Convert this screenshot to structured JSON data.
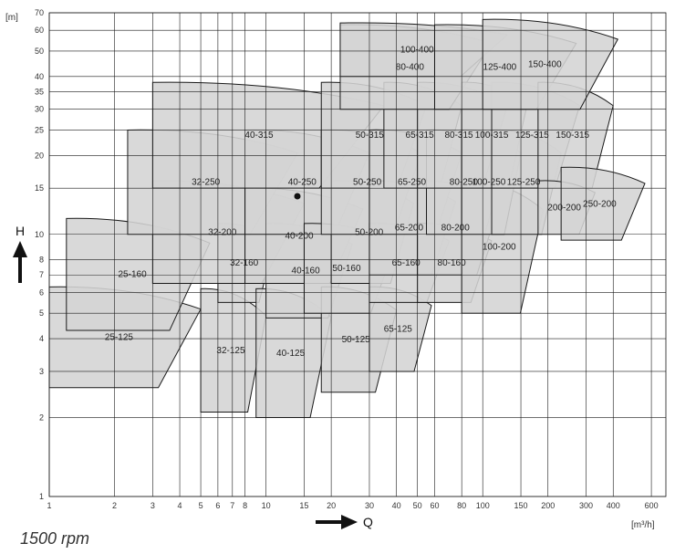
{
  "chart_data": {
    "type": "area",
    "subtitle_rpm": "1500 rpm",
    "x_axis": {
      "name": "Q",
      "unit": "[m³/h]",
      "scale": "log",
      "range": [
        1,
        700
      ],
      "ticks": [
        1,
        2,
        3,
        4,
        5,
        6,
        7,
        8,
        10,
        15,
        20,
        30,
        40,
        50,
        60,
        80,
        100,
        150,
        200,
        300,
        400,
        600
      ]
    },
    "y_axis": {
      "name": "H",
      "unit": "[m]",
      "scale": "log",
      "range": [
        1,
        70
      ],
      "ticks": [
        1,
        2,
        3,
        4,
        5,
        6,
        7,
        8,
        10,
        15,
        20,
        25,
        30,
        35,
        40,
        50,
        60,
        70
      ]
    },
    "grid": true,
    "zones": [
      {
        "label": "25-125",
        "q_range": [
          1,
          5
        ],
        "h_range": [
          2.6,
          6.3
        ]
      },
      {
        "label": "25-160",
        "q_range": [
          1.2,
          5.5
        ],
        "h_range": [
          4.3,
          11.5
        ]
      },
      {
        "label": "32-125",
        "q_range": [
          5,
          10
        ],
        "h_range": [
          2.1,
          6.2
        ]
      },
      {
        "label": "32-160",
        "q_range": [
          6,
          11
        ],
        "h_range": [
          5.5,
          11
        ]
      },
      {
        "label": "32-200",
        "q_range": [
          3,
          15
        ],
        "h_range": [
          6.5,
          16
        ]
      },
      {
        "label": "32-250",
        "q_range": [
          2.3,
          14
        ],
        "h_range": [
          10,
          25
        ]
      },
      {
        "label": "40-125",
        "q_range": [
          9,
          20
        ],
        "h_range": [
          2,
          6.2
        ]
      },
      {
        "label": "40-160",
        "q_range": [
          10,
          25
        ],
        "h_range": [
          4.8,
          11
        ]
      },
      {
        "label": "40-200",
        "q_range": [
          8,
          28
        ],
        "h_range": [
          6.5,
          15
        ]
      },
      {
        "label": "40-250",
        "q_range": [
          8,
          30
        ],
        "h_range": [
          10,
          25
        ]
      },
      {
        "label": "40-315",
        "q_range": [
          3,
          35
        ],
        "h_range": [
          15,
          38
        ]
      },
      {
        "label": "50-125",
        "q_range": [
          18,
          40
        ],
        "h_range": [
          2.5,
          6.3
        ]
      },
      {
        "label": "50-160",
        "q_range": [
          15,
          40
        ],
        "h_range": [
          5,
          11
        ]
      },
      {
        "label": "50-200",
        "q_range": [
          20,
          48
        ],
        "h_range": [
          6.5,
          16
        ]
      },
      {
        "label": "50-250",
        "q_range": [
          18,
          52
        ],
        "h_range": [
          10,
          25
        ]
      },
      {
        "label": "50-315",
        "q_range": [
          18,
          55
        ],
        "h_range": [
          15,
          38
        ]
      },
      {
        "label": "65-125",
        "q_range": [
          30,
          58
        ],
        "h_range": [
          3,
          6.3
        ]
      },
      {
        "label": "65-160",
        "q_range": [
          30,
          70
        ],
        "h_range": [
          5.5,
          11
        ]
      },
      {
        "label": "65-200",
        "q_range": [
          30,
          75
        ],
        "h_range": [
          7,
          16
        ]
      },
      {
        "label": "65-250",
        "q_range": [
          30,
          80
        ],
        "h_range": [
          10,
          25
        ]
      },
      {
        "label": "65-315",
        "q_range": [
          35,
          80
        ],
        "h_range": [
          15,
          38
        ]
      },
      {
        "label": "80-160",
        "q_range": [
          50,
          110
        ],
        "h_range": [
          5.5,
          11
        ]
      },
      {
        "label": "80-200",
        "q_range": [
          50,
          120
        ],
        "h_range": [
          7,
          16
        ]
      },
      {
        "label": "80-250",
        "q_range": [
          55,
          130
        ],
        "h_range": [
          10,
          25
        ]
      },
      {
        "label": "80-315",
        "q_range": [
          50,
          130
        ],
        "h_range": [
          15,
          38
        ]
      },
      {
        "label": "80-400",
        "q_range": [
          22,
          110
        ],
        "h_range": [
          30,
          63
        ]
      },
      {
        "label": "100-200",
        "q_range": [
          80,
          190
        ],
        "h_range": [
          5,
          16
        ]
      },
      {
        "label": "100-250",
        "q_range": [
          80,
          150
        ],
        "h_range": [
          10,
          25
        ]
      },
      {
        "label": "100-315",
        "q_range": [
          80,
          160
        ],
        "h_range": [
          15,
          38
        ]
      },
      {
        "label": "100-400",
        "q_range": [
          22,
          130
        ],
        "h_range": [
          40,
          64
        ]
      },
      {
        "label": "125-250",
        "q_range": [
          110,
          230
        ],
        "h_range": [
          10,
          25
        ]
      },
      {
        "label": "125-315",
        "q_range": [
          110,
          280
        ],
        "h_range": [
          15,
          38
        ]
      },
      {
        "label": "125-400",
        "q_range": [
          60,
          270
        ],
        "h_range": [
          30,
          63
        ]
      },
      {
        "label": "150-315",
        "q_range": [
          180,
          400
        ],
        "h_range": [
          15,
          38
        ]
      },
      {
        "label": "150-400",
        "q_range": [
          100,
          420
        ],
        "h_range": [
          30,
          66
        ]
      },
      {
        "label": "200-200",
        "q_range": [
          180,
          330
        ],
        "h_range": [
          10,
          16
        ]
      },
      {
        "label": "250-200",
        "q_range": [
          230,
          560
        ],
        "h_range": [
          9.5,
          18
        ]
      }
    ]
  }
}
